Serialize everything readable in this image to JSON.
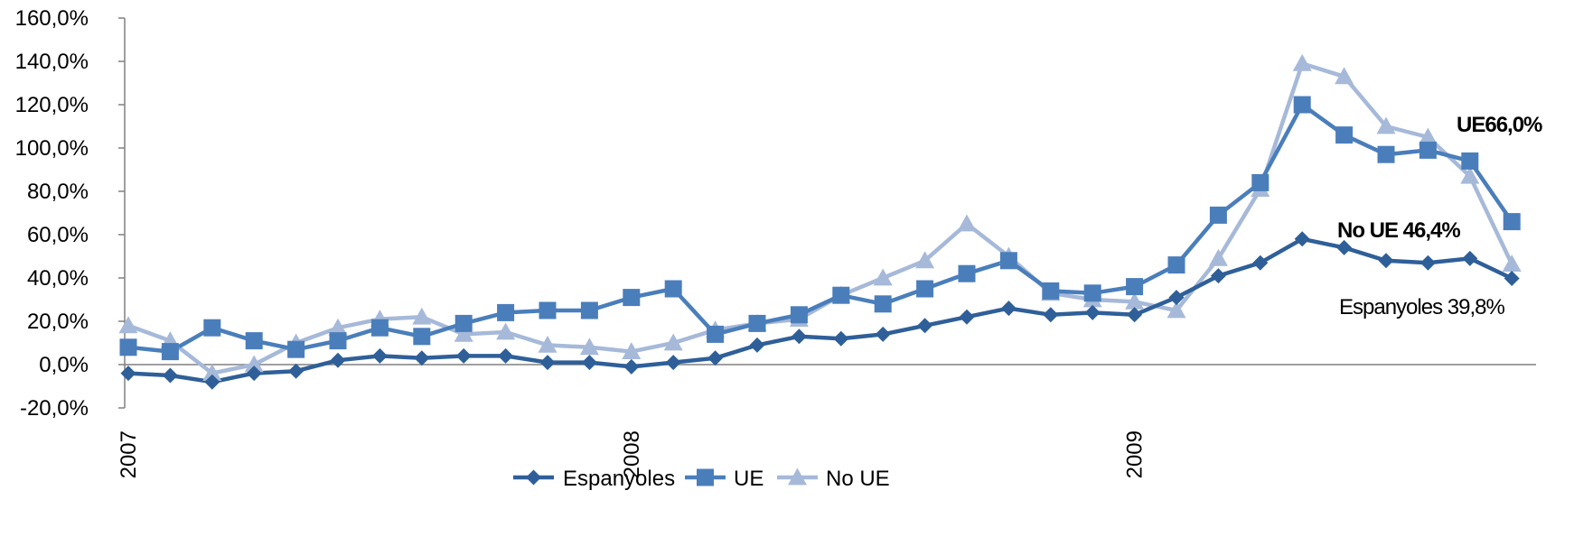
{
  "chart_data": {
    "type": "line",
    "title": "",
    "xlabel": "",
    "ylabel": "",
    "ylim": [
      -20,
      160
    ],
    "yticks": [
      "160,0%",
      "140,0%",
      "120,0%",
      "100,0%",
      "80,0%",
      "60,0%",
      "40,0%",
      "20,0%",
      "0,0%",
      "-20,0%"
    ],
    "ytick_values": [
      160,
      140,
      120,
      100,
      80,
      60,
      40,
      20,
      0,
      -20
    ],
    "x_tick_labels": [
      {
        "label": "2007",
        "index": 0
      },
      {
        "label": "2008",
        "index": 12
      },
      {
        "label": "2009",
        "index": 24
      }
    ],
    "point_count": 34,
    "grid": false,
    "legend_position": "bottom",
    "series": [
      {
        "name": "Espanyoles",
        "color": "#2f5f98",
        "marker": "diamond",
        "values": [
          -4,
          -5,
          -8,
          -4,
          -3,
          2,
          4,
          3,
          4,
          4,
          1,
          1,
          -1,
          1,
          3,
          9,
          13,
          12,
          14,
          18,
          22,
          26,
          23,
          24,
          23,
          31,
          41,
          47,
          58,
          54,
          48,
          47,
          49,
          39.8
        ]
      },
      {
        "name": "UE",
        "color": "#4a7ebb",
        "marker": "square",
        "values": [
          8,
          6,
          17,
          11,
          7,
          11,
          17,
          13,
          19,
          24,
          25,
          25,
          31,
          35,
          14,
          19,
          23,
          32,
          28,
          35,
          42,
          48,
          34,
          33,
          36,
          46,
          69,
          84,
          120,
          106,
          97,
          99,
          94,
          66
        ]
      },
      {
        "name": "No UE",
        "color": "#a6b9d9",
        "marker": "triangle",
        "values": [
          18,
          11,
          -4,
          0,
          10,
          17,
          21,
          22,
          14,
          15,
          9,
          8,
          6,
          10,
          16,
          19,
          21,
          32,
          40,
          48,
          65,
          50,
          33,
          30,
          29,
          25,
          49,
          81,
          139,
          133,
          110,
          105,
          87,
          46.4
        ]
      }
    ],
    "annotations": [
      {
        "text": "UE66,0%",
        "bold": true
      },
      {
        "text": "No UE 46,4%",
        "bold": true
      },
      {
        "text": "Espanyoles 39,8%",
        "bold": false
      }
    ]
  }
}
